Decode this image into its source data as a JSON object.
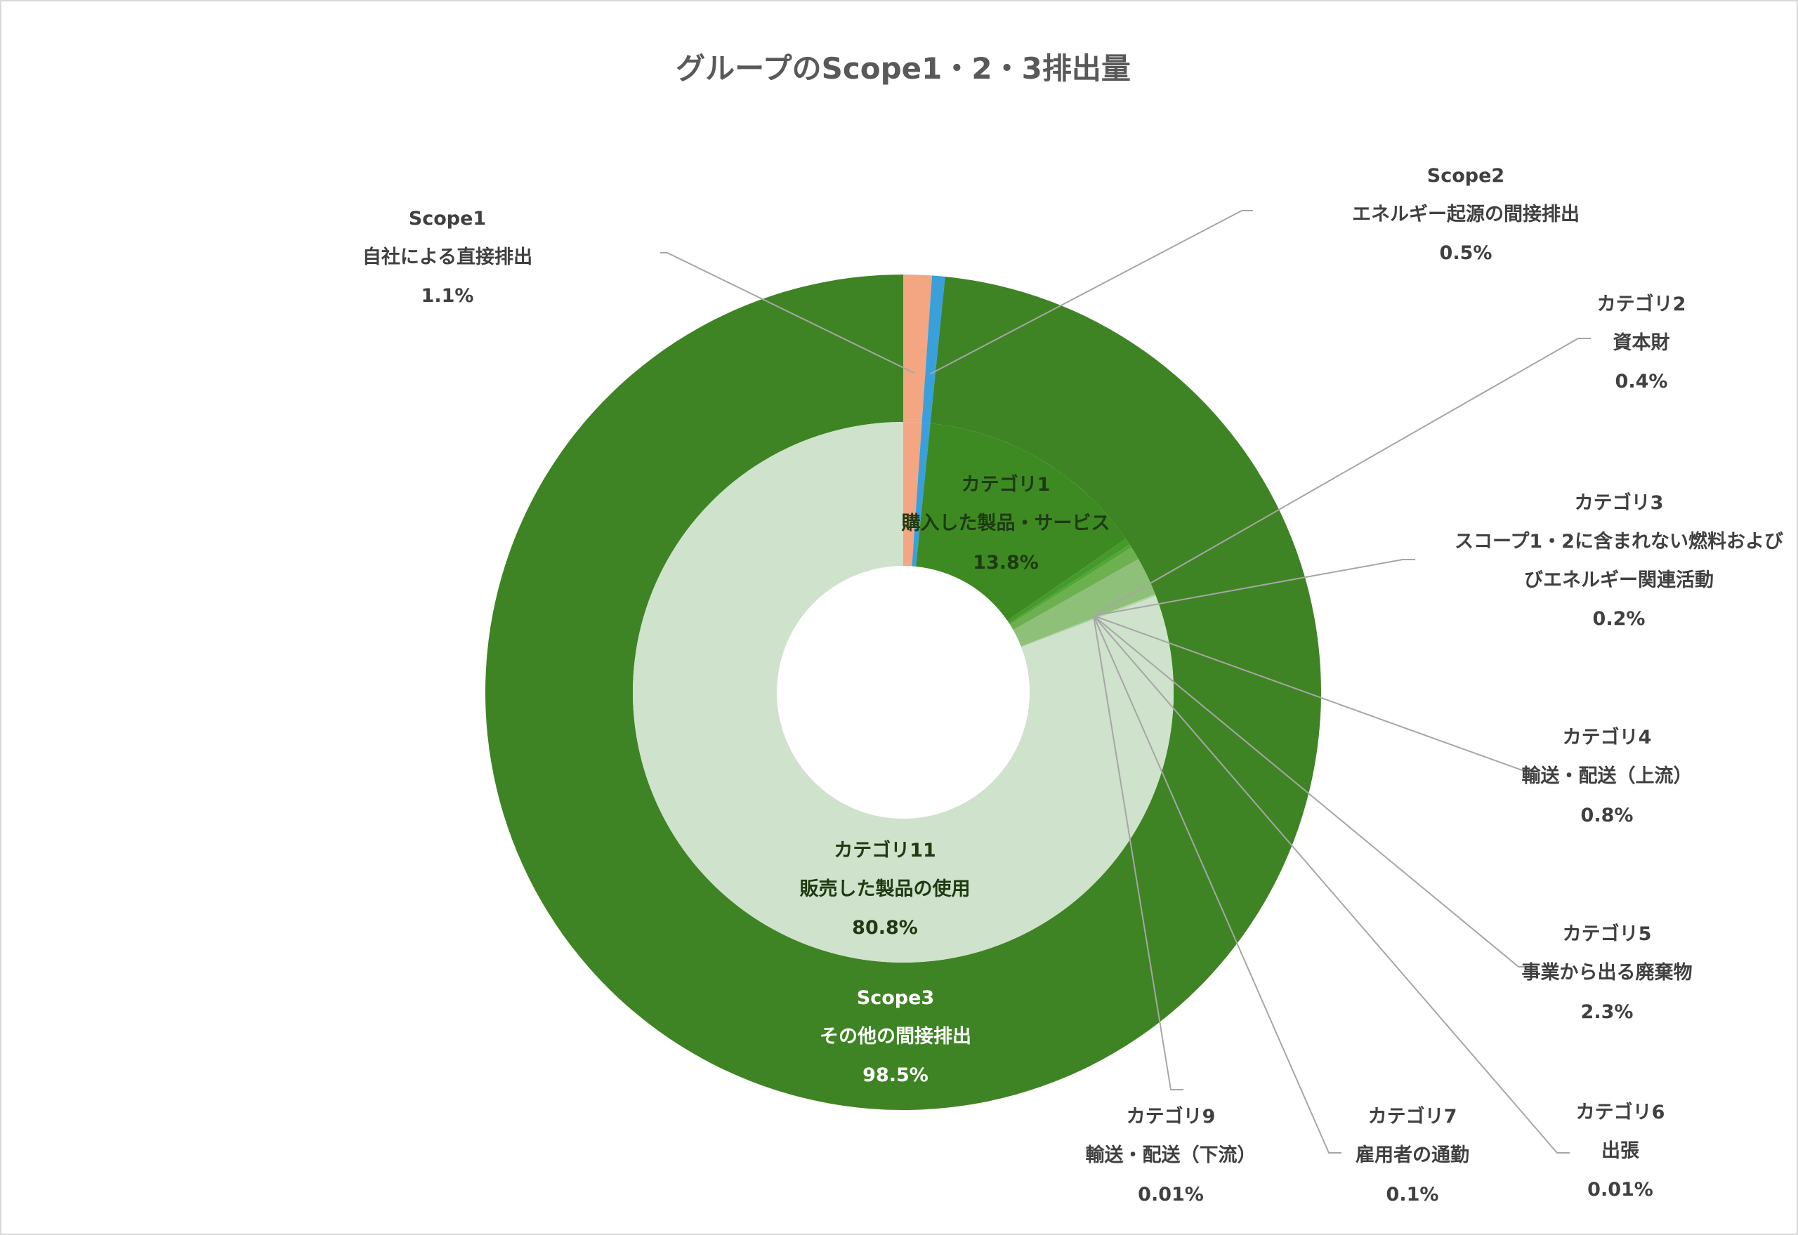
{
  "chart_data": {
    "type": "pie",
    "subtype": "nested-donut",
    "title": "グループのScope1・2・3排出量",
    "outer_ring": [
      {
        "name": "Scope1",
        "desc": "自社による直接排出",
        "value": 1.1,
        "label": "1.1%",
        "color": "#f4a582"
      },
      {
        "name": "Scope2",
        "desc": "エネルギー起源の間接排出",
        "value": 0.5,
        "label": "0.5%",
        "color": "#3aa0dc"
      },
      {
        "name": "Scope3",
        "desc": "その他の間接排出",
        "value": 98.5,
        "label": "98.5%",
        "color": "#3f8424"
      }
    ],
    "inner_ring": [
      {
        "name": "Scope1",
        "value": 1.1,
        "color": "#f4a582"
      },
      {
        "name": "Scope2",
        "value": 0.5,
        "color": "#3aa0dc"
      },
      {
        "name": "カテゴリ1",
        "desc": "購入した製品・サービス",
        "value": 13.8,
        "label": "13.8%",
        "color": "#3d8a22"
      },
      {
        "name": "カテゴリ2",
        "desc": "資本財",
        "value": 0.4,
        "label": "0.4%",
        "color": "#469a2c"
      },
      {
        "name": "カテゴリ3",
        "desc": "スコープ1・2に含まれない燃料および エネルギー関連活動",
        "value": 0.2,
        "label": "0.2%",
        "color": "#52a636"
      },
      {
        "name": "カテゴリ4",
        "desc": "輸送・配送（上流）",
        "value": 0.8,
        "label": "0.8%",
        "color": "#6cb04f"
      },
      {
        "name": "カテゴリ5",
        "desc": "事業から出る廃棄物",
        "value": 2.3,
        "label": "2.3%",
        "color": "#8fc07a"
      },
      {
        "name": "カテゴリ6",
        "desc": "出張",
        "value": 0.01,
        "label": "0.01%",
        "color": "#a4cc93"
      },
      {
        "name": "カテゴリ7",
        "desc": "雇用者の通勤",
        "value": 0.1,
        "label": "0.1%",
        "color": "#b3d4a5"
      },
      {
        "name": "カテゴリ9",
        "desc": "輸送・配送（下流）",
        "value": 0.01,
        "label": "0.01%",
        "color": "#c3ddb8"
      },
      {
        "name": "カテゴリ11",
        "desc": "販売した製品の使用",
        "value": 80.8,
        "label": "80.8%",
        "color": "#cfe2cb"
      }
    ]
  }
}
